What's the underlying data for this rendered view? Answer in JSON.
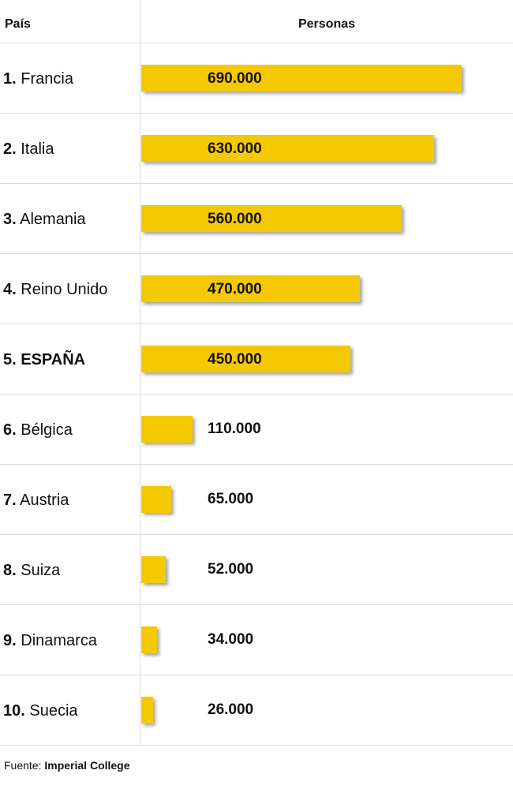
{
  "header": {
    "country_label": "País",
    "value_label": "Personas"
  },
  "chart_data": {
    "type": "bar",
    "orientation": "horizontal",
    "categories": [
      "Francia",
      "Italia",
      "Alemania",
      "Reino Unido",
      "ESPAÑA",
      "Bélgica",
      "Austria",
      "Suiza",
      "Dinamarca",
      "Suecia"
    ],
    "ranks": [
      "1.",
      "2.",
      "3.",
      "4.",
      "5.",
      "6.",
      "7.",
      "8.",
      "9.",
      "10."
    ],
    "values": [
      690000,
      630000,
      560000,
      470000,
      450000,
      110000,
      65000,
      52000,
      34000,
      26000
    ],
    "value_labels": [
      "690.000",
      "630.000",
      "560.000",
      "470.000",
      "450.000",
      "110.000",
      "65.000",
      "52.000",
      "34.000",
      "26.000"
    ],
    "highlighted": "ESPAÑA",
    "bar_color": "#f5c900",
    "title": "",
    "xlabel": "Personas",
    "ylabel": "País",
    "xlim": [
      0,
      690000
    ],
    "grid": false,
    "legend": "none"
  },
  "footer": {
    "prefix": "Fuente:",
    "source": "Imperial College"
  }
}
